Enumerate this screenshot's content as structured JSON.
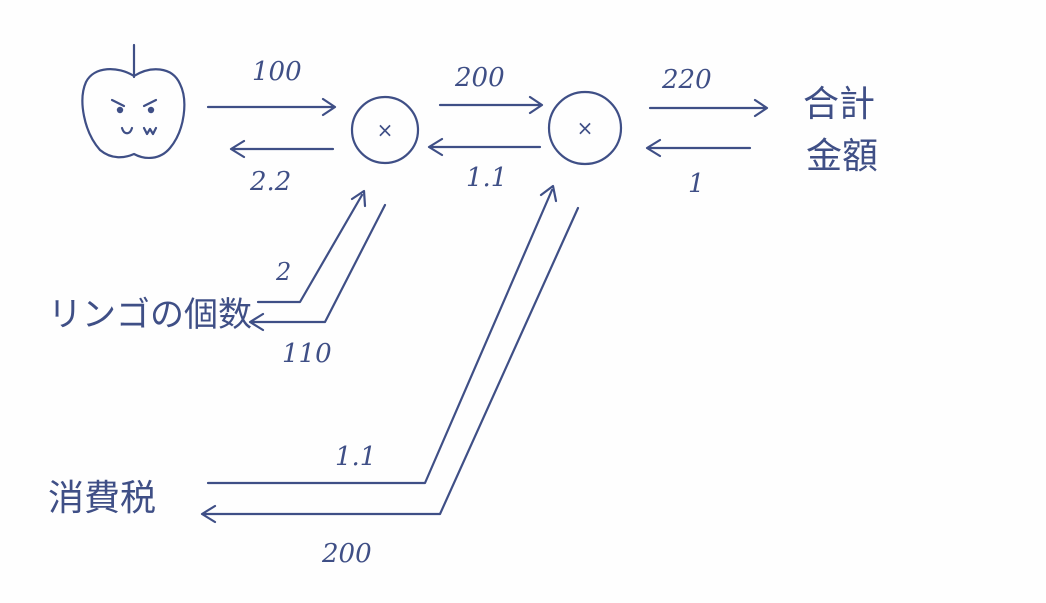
{
  "nodes": {
    "mult1": {
      "op": "×"
    },
    "mult2": {
      "op": "×"
    },
    "total": {
      "line1": "合計",
      "line2": "金額"
    },
    "apple_count": {
      "label": "リンゴの個数"
    },
    "tax": {
      "label": "消費税"
    }
  },
  "edges": {
    "apple_to_mult1": {
      "forward": "100",
      "backward": "2.2"
    },
    "mult1_to_mult2": {
      "forward": "200",
      "backward": "1.1"
    },
    "mult2_to_total": {
      "forward": "220",
      "backward": "1"
    },
    "count_to_mult1": {
      "forward": "2",
      "backward": "110"
    },
    "tax_to_mult2": {
      "forward": "1.1",
      "backward": "200"
    }
  },
  "colors": {
    "ink": "#3f4f86",
    "paper": "#fefefe"
  },
  "icons": {
    "apple": "apple-face-icon"
  }
}
